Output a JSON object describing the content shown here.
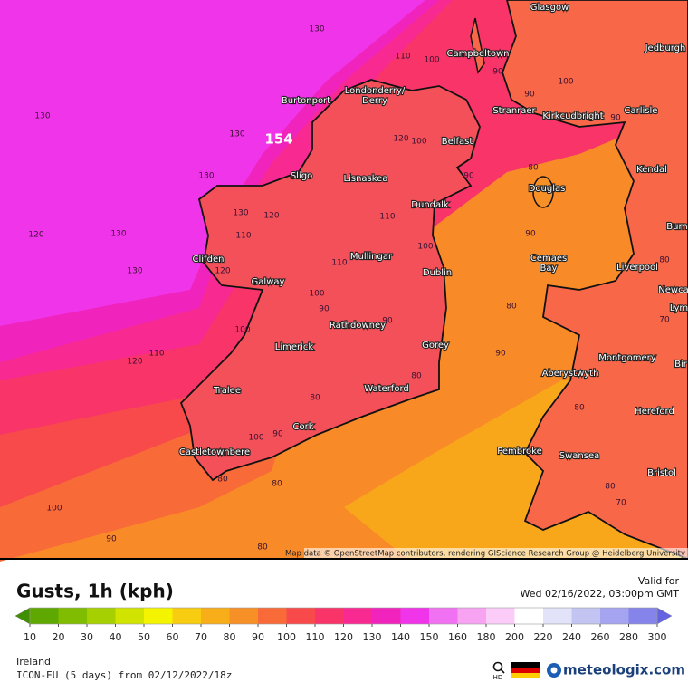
{
  "map": {
    "max_gust": 154,
    "attribution": "Map data © OpenStreetMap contributors, rendering GIScience Research Group @ Heidelberg University",
    "cities": [
      "Glasgow",
      "Campbeltown",
      "Jedburgh",
      "Burtonport",
      "Londonderry/",
      "Derry",
      "Stranraer",
      "Kirkcudbright",
      "Carlisle",
      "Belfast",
      "Sligo",
      "Lisnaskea",
      "Kendal",
      "Douglas",
      "Dundalk",
      "Burn",
      "Mullingar",
      "Cemaes",
      "Bay",
      "Clifden",
      "Liverpool",
      "Dublin",
      "Galway",
      "Newca",
      "Lym",
      "Rathdowney",
      "Limerick",
      "Gorey",
      "Montgomery",
      "Aberystwyth",
      "Bir",
      "Tralee",
      "Waterford",
      "Hereford",
      "Cork",
      "Castletownbere",
      "Pembroke",
      "Swansea",
      "Bristol"
    ],
    "contour_labels": [
      130,
      110,
      100,
      90,
      100,
      130,
      130,
      120,
      100,
      90,
      90,
      80,
      130,
      130,
      120,
      110,
      130,
      120,
      90,
      110,
      100,
      130,
      110,
      120,
      100,
      90,
      80,
      90,
      100,
      110,
      120,
      90,
      80,
      80,
      100,
      90,
      80,
      80,
      100,
      90,
      80,
      80,
      70,
      80,
      70,
      90,
      80
    ]
  },
  "footer": {
    "title": "Gusts, 1h (kph)",
    "valid_label": "Valid for",
    "valid_time": "Wed 02/16/2022, 03:00pm GMT",
    "region": "Ireland",
    "model": "ICON-EU (5 days) from 02/12/2022/18z",
    "hd": "HD",
    "brand": "meteologix.com"
  },
  "legend": {
    "ticks": [
      10,
      20,
      30,
      40,
      50,
      60,
      70,
      80,
      90,
      100,
      110,
      120,
      130,
      140,
      150,
      160,
      180,
      200,
      220,
      240,
      260,
      280,
      300
    ],
    "colors": [
      "#3f8f00",
      "#5fa800",
      "#80bd00",
      "#a6d000",
      "#d0e400",
      "#f4f400",
      "#f8cc10",
      "#f8ae18",
      "#f89028",
      "#f86a38",
      "#f84a4a",
      "#f83468",
      "#f82a92",
      "#f024bc",
      "#f034ea",
      "#f072f2",
      "#f8a2f2",
      "#fcccf8",
      "#ffffff",
      "#e2e2f8",
      "#c4c4f2",
      "#a4a4f0",
      "#8484ea",
      "#6464e2"
    ]
  }
}
